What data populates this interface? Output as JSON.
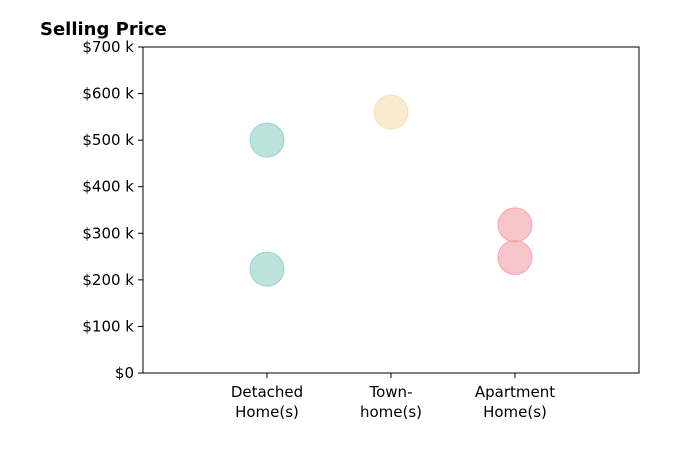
{
  "chart_data": {
    "type": "scatter",
    "title": "Selling Price",
    "xlabel": "",
    "ylabel": "",
    "categories": [
      [
        "Detached",
        "Home(s)"
      ],
      [
        "Town-",
        "home(s)"
      ],
      [
        "Apartment",
        "Home(s)"
      ]
    ],
    "ylim": [
      0,
      700
    ],
    "y_ticks": [
      0,
      100,
      200,
      300,
      400,
      500,
      600,
      700
    ],
    "y_tick_labels": [
      "$0",
      "$100 k",
      "$200 k",
      "$300 k",
      "$400 k",
      "$500 k",
      "$600 k",
      "$700 k"
    ],
    "grid": false,
    "legend": "none",
    "series": [
      {
        "category_index": 0,
        "color": "#8fcfc8",
        "values": [
          500,
          223
        ]
      },
      {
        "category_index": 1,
        "color": "#f5deb0",
        "values": [
          560
        ]
      },
      {
        "category_index": 2,
        "color": "#f4a0a6",
        "values": [
          318,
          248
        ]
      }
    ]
  }
}
